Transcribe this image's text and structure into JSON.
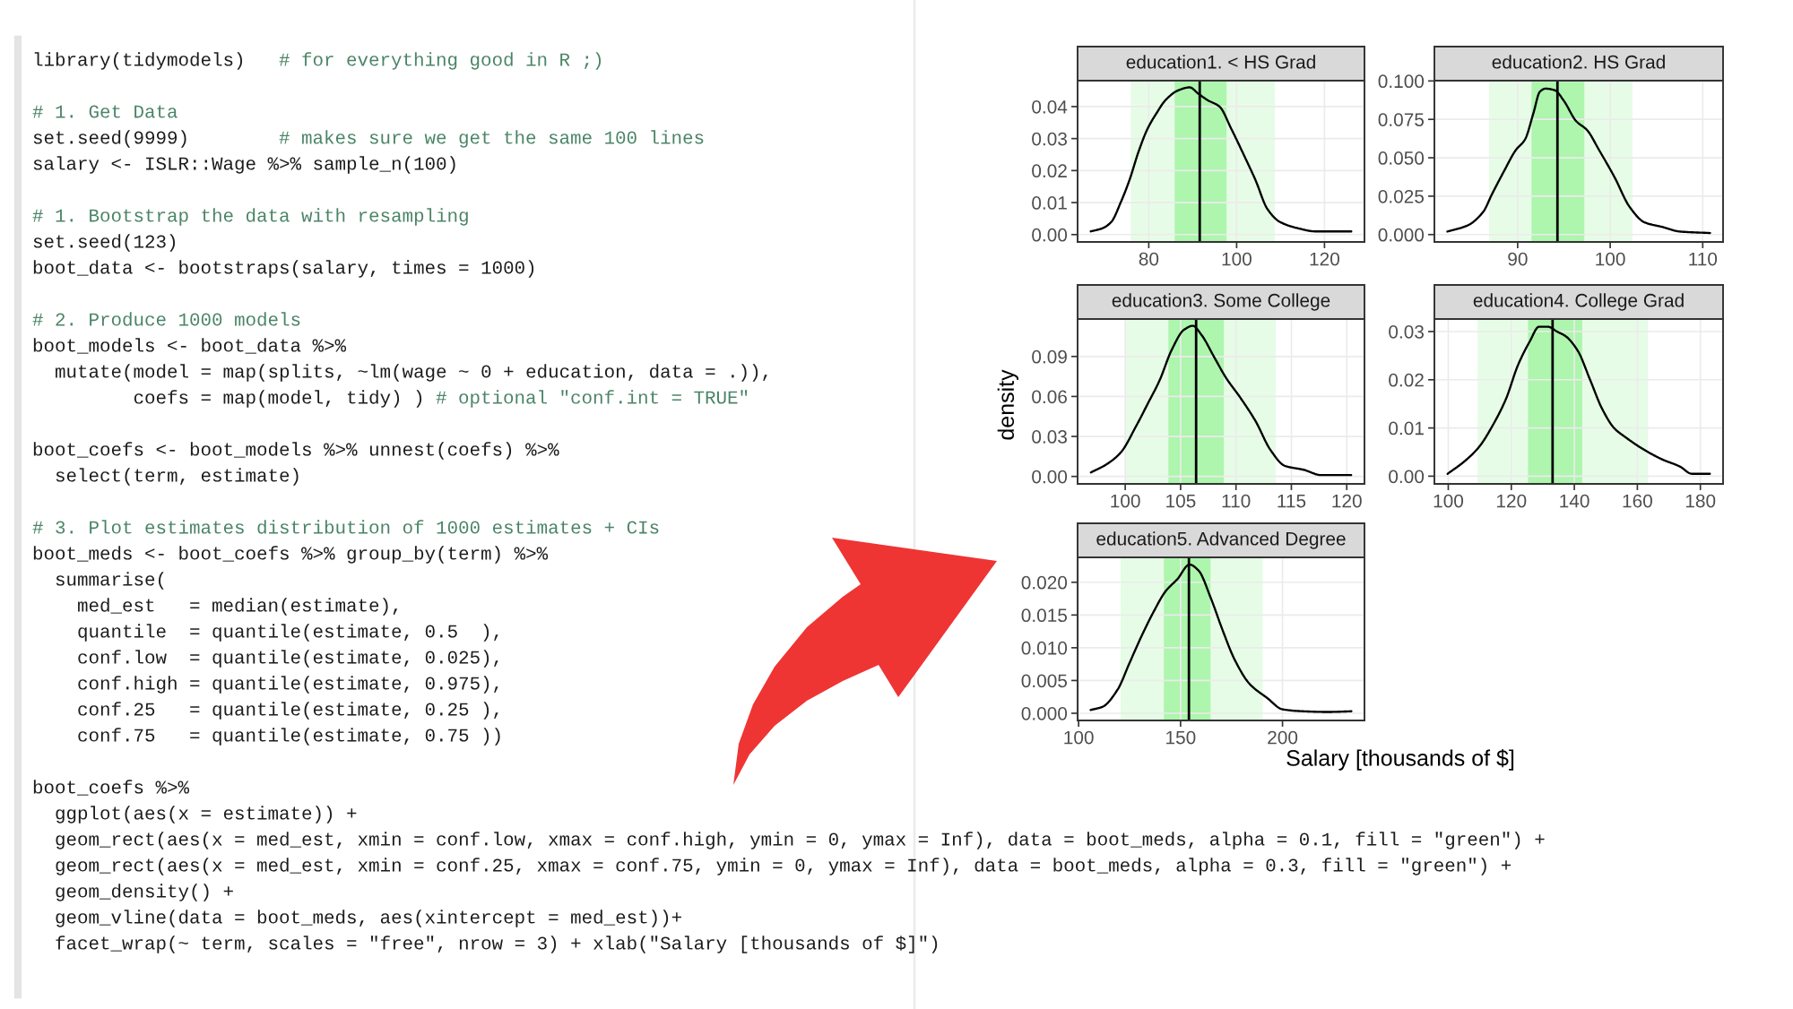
{
  "chart_data": [
    {
      "type": "other",
      "annotations": [
        "library(tidymodels)   # for everything good in R ;)",
        "# 1. Get Data\nset.seed(9999)        # makes sure we get the same 100 lines\nsalary <- ISLR::Wage %>% sample_n(100)",
        "# 1. Bootstrap the data with resampling\nset.seed(123)\nboot_data <- bootstraps(salary, times = 1000)",
        "# 2. Produce 1000 models\nboot_models <- boot_data %>%\n  mutate(model = map(splits, ~lm(wage ~ 0 + education, data = .)),\n         coefs = map(model, tidy) ) # optional \"conf.int = TRUE\"",
        "boot_coefs <- boot_models %>% unnest(coefs) %>%\n  select(term, estimate)",
        "# 3. Plot estimates distribution of 1000 estimates + CIs\nboot_meds <- boot_coefs %>% group_by(term) %>%\n  summarise(\n    med_est   = median(estimate),\n    quantile  = quantile(estimate, 0.5  ),\n    conf.low  = quantile(estimate, 0.025),\n    conf.high = quantile(estimate, 0.975),\n    conf.25   = quantile(estimate, 0.25 ),\n    conf.75   = quantile(estimate, 0.75 ))",
        "boot_coefs %>%\n  ggplot(aes(x = estimate)) +\n  geom_rect(aes(x = med_est, xmin = conf.low, xmax = conf.high, ymin = 0, ymax = Inf), data = boot_meds, alpha = 0.1, fill = \"green\") +\n  geom_rect(aes(x = med_est, xmin = conf.25, xmax = conf.75, ymin = 0, ymax = Inf), data = boot_meds, alpha = 0.3, fill = \"green\") +\n  geom_density() +\n  geom_vline(data = boot_meds, aes(xintercept = med_est))+\n  facet_wrap(~ term, scales = \"free\", nrow = 3) + xlab(\"Salary [thousands of $]\")"
      ]
    },
    {
      "type": "line",
      "title": "education1. < HS Grad",
      "color": "#000000",
      "grid": true,
      "x": [
        66.8,
        69.5,
        71.5,
        73.6,
        75.6,
        77.7,
        79.7,
        81.8,
        83.8,
        86.6,
        89.3,
        91.3,
        93.4,
        96.1,
        98.8,
        101.6,
        104.3,
        107.0,
        109.8,
        113.9,
        117.9,
        126.1
      ],
      "values": [
        0.001,
        0.002,
        0.004,
        0.01,
        0.017,
        0.026,
        0.033,
        0.038,
        0.042,
        0.045,
        0.046,
        0.044,
        0.042,
        0.04,
        0.033,
        0.025,
        0.017,
        0.008,
        0.004,
        0.002,
        0.001,
        0.001
      ],
      "xlim": [
        63.8,
        129.1
      ],
      "ylim": [
        -0.0023,
        0.0481
      ],
      "xticks": [
        80,
        100,
        120
      ],
      "yticks": [
        {
          "value": 0,
          "label": "0.00"
        },
        0.01,
        0.02,
        0.03,
        0.04
      ],
      "ref_lines": [
        {
          "axis": "x",
          "value": 91.6,
          "color": "#000000"
        }
      ],
      "bands": [
        {
          "axis": "x",
          "from": 75.9,
          "to": 108.7,
          "color": "#e6fce6"
        },
        {
          "axis": "x",
          "from": 85.9,
          "to": 97.7,
          "color": "#aef5ae"
        }
      ]
    },
    {
      "type": "line",
      "title": "education2. HS Grad",
      "color": "#000000",
      "grid": true,
      "x": [
        82.4,
        84.6,
        86.3,
        87.2,
        88.5,
        89.8,
        90.8,
        91.7,
        92.4,
        93.0,
        94.0,
        95.0,
        96.3,
        97.5,
        98.8,
        100.5,
        102.1,
        103.7,
        105.6,
        107.5,
        110.8
      ],
      "values": [
        0.002,
        0.006,
        0.015,
        0.026,
        0.041,
        0.055,
        0.062,
        0.079,
        0.093,
        0.095,
        0.094,
        0.087,
        0.074,
        0.068,
        0.055,
        0.037,
        0.018,
        0.008,
        0.005,
        0.002,
        0.001
      ],
      "xlim": [
        81.0,
        112.2
      ],
      "ylim": [
        -0.0048,
        0.1002
      ],
      "xticks": [
        90,
        100,
        110
      ],
      "yticks": [
        {
          "value": 0,
          "label": "0.000"
        },
        0.025,
        {
          "value": 0.05,
          "label": "0.050"
        },
        0.075,
        {
          "value": 0.1,
          "label": "0.100"
        }
      ],
      "ref_lines": [
        {
          "axis": "x",
          "value": 94.3,
          "color": "#000000"
        }
      ],
      "bands": [
        {
          "axis": "x",
          "from": 86.9,
          "to": 102.4,
          "color": "#e6fce6"
        },
        {
          "axis": "x",
          "from": 91.5,
          "to": 97.2,
          "color": "#aef5ae"
        }
      ]
    },
    {
      "type": "line",
      "title": "education3. Some College",
      "color": "#000000",
      "grid": true,
      "ylabel": "density",
      "x": [
        96.9,
        98.3,
        99.6,
        101.0,
        102.0,
        103.1,
        104.2,
        105.3,
        106.1,
        106.9,
        108.0,
        109.1,
        110.4,
        111.8,
        113.1,
        114.4,
        116.1,
        117.7,
        120.4
      ],
      "values": [
        0.003,
        0.009,
        0.018,
        0.038,
        0.054,
        0.072,
        0.095,
        0.11,
        0.113,
        0.106,
        0.09,
        0.074,
        0.059,
        0.041,
        0.02,
        0.008,
        0.005,
        0.001,
        0.001
      ],
      "xlim": [
        95.7,
        121.6
      ],
      "ylim": [
        -0.0056,
        0.1181
      ],
      "xticks": [
        100,
        105,
        110,
        115,
        120
      ],
      "yticks": [
        {
          "value": 0,
          "label": "0.00"
        },
        0.03,
        0.06,
        0.09
      ],
      "ref_lines": [
        {
          "axis": "x",
          "value": 106.4,
          "color": "#000000"
        }
      ],
      "bands": [
        {
          "axis": "x",
          "from": 100.0,
          "to": 113.6,
          "color": "#e6fce6"
        },
        {
          "axis": "x",
          "from": 103.9,
          "to": 108.9,
          "color": "#aef5ae"
        }
      ]
    },
    {
      "type": "line",
      "title": "education4. College Grad",
      "color": "#000000",
      "grid": true,
      "x": [
        99.8,
        105.0,
        109.7,
        114.5,
        118.3,
        122.1,
        125.9,
        128.8,
        131.6,
        134.5,
        137.3,
        141.1,
        145.0,
        148.8,
        152.6,
        156.4,
        162.1,
        167.8,
        173.5,
        177.3,
        183.0
      ],
      "values": [
        0.0005,
        0.003,
        0.006,
        0.011,
        0.016,
        0.023,
        0.028,
        0.031,
        0.031,
        0.03,
        0.029,
        0.026,
        0.02,
        0.014,
        0.01,
        0.008,
        0.0055,
        0.0035,
        0.002,
        0.0005,
        0.0005
      ],
      "xlim": [
        95.6,
        187.2
      ],
      "ylim": [
        -0.0016,
        0.0326
      ],
      "xticks": [
        100,
        120,
        140,
        160,
        180
      ],
      "yticks": [
        {
          "value": 0,
          "label": "0.00"
        },
        0.01,
        0.02,
        0.03
      ],
      "ref_lines": [
        {
          "axis": "x",
          "value": 133.1,
          "color": "#000000"
        }
      ],
      "bands": [
        {
          "axis": "x",
          "from": 109.3,
          "to": 163.4,
          "color": "#e6fce6"
        },
        {
          "axis": "x",
          "from": 125.3,
          "to": 142.5,
          "color": "#aef5ae"
        }
      ]
    },
    {
      "type": "line",
      "title": "education5. Advanced Degree",
      "color": "#000000",
      "grid": true,
      "xlabel": "Salary [thousands of $]",
      "x": [
        105.9,
        111.8,
        119.1,
        125.0,
        130.9,
        136.8,
        142.6,
        148.5,
        154.4,
        158.8,
        164.7,
        170.6,
        176.5,
        183.8,
        192.6,
        200.0,
        210.3,
        222.1,
        233.8
      ],
      "values": [
        0.0005,
        0.001,
        0.0036,
        0.0077,
        0.0118,
        0.0155,
        0.0186,
        0.0205,
        0.0227,
        0.0218,
        0.0177,
        0.0127,
        0.0082,
        0.0045,
        0.0023,
        0.0006,
        0.0003,
        0.0002,
        0.0003
      ],
      "xlim": [
        99.5,
        240.2
      ],
      "ylim": [
        -0.0011,
        0.0238
      ],
      "xticks": [
        100,
        150,
        200
      ],
      "yticks": [
        {
          "value": 0,
          "label": "0.000"
        },
        0.005,
        {
          "value": 0.01,
          "label": "0.010"
        },
        0.015,
        {
          "value": 0.02,
          "label": "0.020"
        }
      ],
      "ref_lines": [
        {
          "axis": "x",
          "value": 154.1,
          "color": "#000000"
        }
      ],
      "bands": [
        {
          "axis": "x",
          "from": 120.6,
          "to": 190.3,
          "color": "#e6fce6"
        },
        {
          "axis": "x",
          "from": 141.8,
          "to": 164.7,
          "color": "#aef5ae"
        }
      ]
    }
  ]
}
